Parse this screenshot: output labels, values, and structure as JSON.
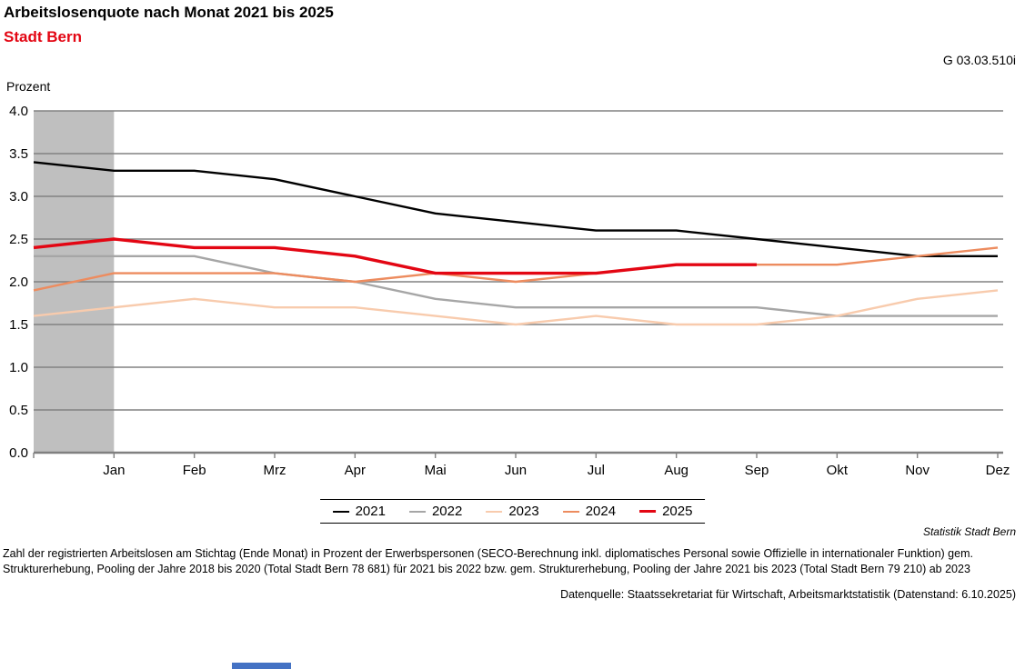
{
  "header": {
    "figure_id": "G 03.03.510i"
  },
  "chart_data": {
    "type": "line",
    "title": "Arbeitslosenquote nach Monat 2021 bis 2025",
    "subtitle": "Stadt Bern",
    "ylabel": "Prozent",
    "xlabel": "",
    "ylim": [
      0,
      4
    ],
    "ytick_step": 0.5,
    "yticks": [
      "0.0",
      "0.5",
      "1.0",
      "1.5",
      "2.0",
      "2.5",
      "3.0",
      "3.5",
      "4.0"
    ],
    "x_months": [
      "Jan",
      "Feb",
      "Mrz",
      "Apr",
      "Mai",
      "Jun",
      "Jul",
      "Aug",
      "Sep",
      "Okt",
      "Nov",
      "Dez"
    ],
    "grid": true,
    "legend_position": "bottom-center",
    "prev_december_lead_in": true,
    "highlight_band": {
      "from_point_index": 0,
      "to_point_index": 1,
      "color": "#bfbfbf"
    },
    "series": [
      {
        "name": "2021",
        "color": "#000000",
        "width": 2.4,
        "values": [
          3.4,
          3.3,
          3.3,
          3.2,
          3.0,
          2.8,
          2.7,
          2.6,
          2.6,
          2.5,
          2.4,
          2.3,
          2.3
        ]
      },
      {
        "name": "2022",
        "color": "#a6a6a6",
        "width": 2.4,
        "values": [
          2.3,
          2.3,
          2.3,
          2.1,
          2.0,
          1.8,
          1.7,
          1.7,
          1.7,
          1.7,
          1.6,
          1.6,
          1.6
        ]
      },
      {
        "name": "2023",
        "color": "#f8cbad",
        "width": 2.4,
        "values": [
          1.6,
          1.7,
          1.8,
          1.7,
          1.7,
          1.6,
          1.5,
          1.6,
          1.5,
          1.5,
          1.6,
          1.8,
          1.9
        ]
      },
      {
        "name": "2024",
        "color": "#ed8c5f",
        "width": 2.4,
        "values": [
          1.9,
          2.1,
          2.1,
          2.1,
          2.0,
          2.1,
          2.0,
          2.1,
          2.2,
          2.2,
          2.2,
          2.3,
          2.4
        ]
      },
      {
        "name": "2025",
        "color": "#e30613",
        "width": 3.4,
        "values": [
          2.4,
          2.5,
          2.4,
          2.4,
          2.3,
          2.1,
          2.1,
          2.1,
          2.2,
          2.2
        ]
      }
    ]
  },
  "footer": {
    "attribution": "Statistik Stadt Bern",
    "note_line1": "Zahl der registrierten Arbeitslosen am Stichtag (Ende Monat) in Prozent der Erwerbspersonen (SECO-Berechnung inkl. diplomatisches Personal sowie Offizielle in internationaler Funktion) gem.",
    "note_line2": "Strukturerhebung, Pooling der Jahre 2018 bis 2020 (Total Stadt Bern 78 681) für 2021 bis 2022 bzw. gem. Strukturerhebung, Pooling der Jahre 2021 bis 2023 (Total Stadt Bern 79 210) ab 2023",
    "source": "Datenquelle: Staatssekretariat für Wirtschaft, Arbeitsmarktstatistik (Datenstand: 6.10.2025)"
  }
}
